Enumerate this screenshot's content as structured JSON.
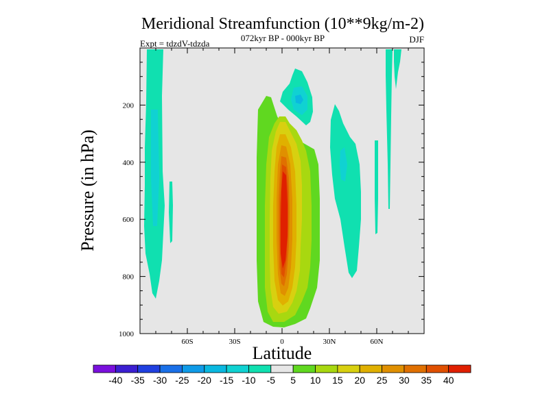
{
  "chart_data": {
    "type": "filled-contour",
    "title": "Meridional Streamfunction (10**9kg/m-2)",
    "subtitle": "072kyr BP - 000kyr BP",
    "left_label": "Expt = tdzdV-tdzda",
    "right_label": "DJF",
    "xlabel": "Latitude",
    "ylabel": "Pressure (in hPa)",
    "xlim": [
      -90,
      90
    ],
    "ylim": [
      1000,
      0
    ],
    "x_ticks": [
      {
        "value": -60,
        "label": "60S"
      },
      {
        "value": -30,
        "label": "30S"
      },
      {
        "value": 0,
        "label": "0"
      },
      {
        "value": 30,
        "label": "30N"
      },
      {
        "value": 60,
        "label": "60N"
      }
    ],
    "y_ticks": [
      {
        "value": 200,
        "label": "200"
      },
      {
        "value": 400,
        "label": "400"
      },
      {
        "value": 600,
        "label": "600"
      },
      {
        "value": 800,
        "label": "800"
      },
      {
        "value": 1000,
        "label": "1000"
      }
    ],
    "colorbar": {
      "labels": [
        "-40",
        "-35",
        "-30",
        "-25",
        "-20",
        "-15",
        "-10",
        "-5",
        "5",
        "10",
        "15",
        "20",
        "25",
        "30",
        "35",
        "40"
      ],
      "colors": [
        "#7a10dd",
        "#3b1fd1",
        "#2040e0",
        "#1a70e8",
        "#0f9be8",
        "#0ab8e0",
        "#10d2d2",
        "#10e0b0",
        "#e6e6e6",
        "#60d820",
        "#a8d810",
        "#d8d010",
        "#e0b000",
        "#e09000",
        "#e07000",
        "#e05000",
        "#e02000"
      ]
    },
    "regions": [
      {
        "name": "tropical-positive-cell",
        "level": 5,
        "lon_center": 3,
        "p_top": 170,
        "p_bottom": 980,
        "peak": 40,
        "peak_lat": 0,
        "peak_p": 600
      },
      {
        "name": "upper-negative-cell",
        "level": -5,
        "lon_center": 9,
        "p_top": 70,
        "p_bottom": 250,
        "peak": -15,
        "peak_lat": 8,
        "peak_p": 170
      },
      {
        "name": "nh-midlat-negative-cell",
        "level": -5,
        "lon_center": 40,
        "p_top": 200,
        "p_bottom": 800,
        "peak": -10
      },
      {
        "name": "sh-highlat-negative-cell",
        "level": -5,
        "lon_center": -78,
        "p_top": 0,
        "p_bottom": 870,
        "peak": -10
      },
      {
        "name": "nh-highlat-negative-strips",
        "level": -5,
        "lon_center": 70,
        "p_top": 0,
        "p_bottom": 550,
        "peak": -10
      }
    ]
  }
}
